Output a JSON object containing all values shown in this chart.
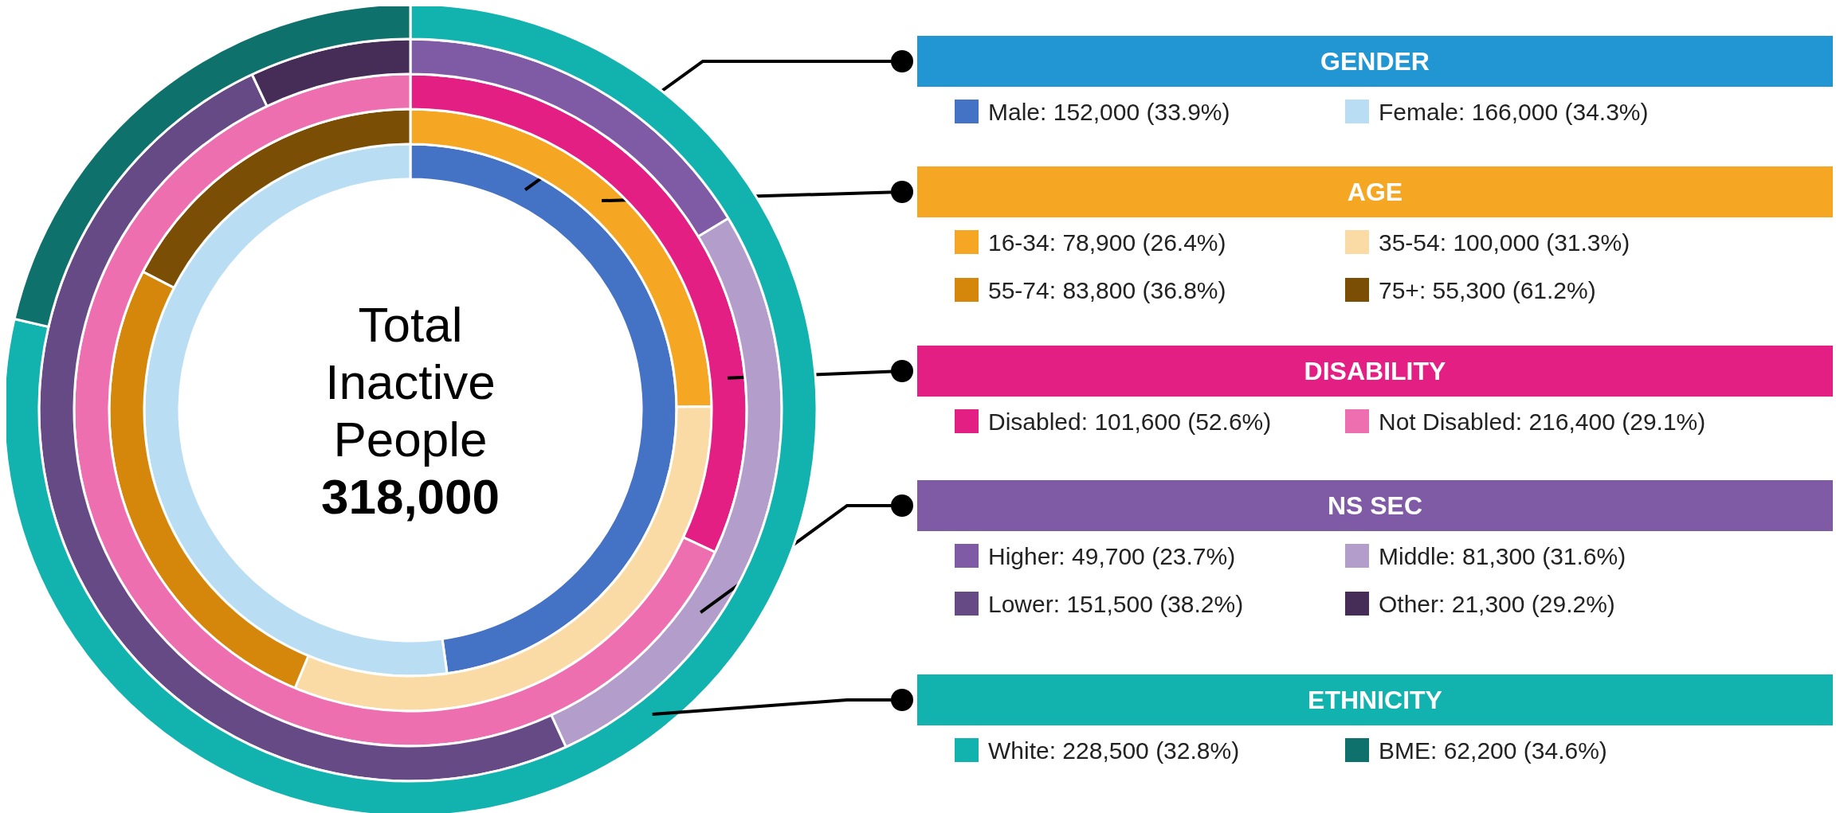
{
  "chart_data": [
    {
      "type": "donut",
      "title": "GENDER",
      "color": "#2196d3",
      "legend": "right",
      "categories": [
        "Male",
        "Female"
      ],
      "values": [
        152000,
        166000
      ],
      "value_labels": [
        "152,000 (33.9%)",
        "166,000 (34.3%)"
      ],
      "colors": [
        "#4472c4",
        "#b9def4"
      ],
      "annotations": [
        "Total Inactive People",
        "318,000"
      ]
    },
    {
      "type": "donut",
      "title": "AGE",
      "color": "#f5a623",
      "legend": "right",
      "categories": [
        "16-34",
        "35-54",
        "55-74",
        "75+"
      ],
      "values": [
        78900,
        100000,
        83800,
        55300
      ],
      "value_labels": [
        "78,900 (26.4%)",
        "100,000 (31.3%)",
        "83,800 (36.8%)",
        "55,300 (61.2%)"
      ],
      "colors": [
        "#f5a623",
        "#fbdba5",
        "#d4870a",
        "#7a4e05"
      ]
    },
    {
      "type": "donut",
      "title": "DISABILITY",
      "color": "#e31f84",
      "legend": "right",
      "categories": [
        "Disabled",
        "Not Disabled"
      ],
      "values": [
        101600,
        216400
      ],
      "value_labels": [
        "101,600 (52.6%)",
        "216,400 (29.1%)"
      ],
      "colors": [
        "#e31f84",
        "#ee6faf"
      ]
    },
    {
      "type": "donut",
      "title": "NS SEC",
      "color": "#7f5ba5",
      "legend": "right",
      "categories": [
        "Higher",
        "Middle",
        "Lower",
        "Other"
      ],
      "values": [
        49700,
        81300,
        151500,
        21300
      ],
      "value_labels": [
        "49,700 (23.7%)",
        "81,300 (31.6%)",
        "151,500 (38.2%)",
        "21,300 (29.2%)"
      ],
      "colors": [
        "#7f5ba5",
        "#b39ecb",
        "#664a85",
        "#452d58"
      ]
    },
    {
      "type": "donut",
      "title": "ETHNICITY",
      "color": "#12b3ae",
      "legend": "right",
      "categories": [
        "White",
        "BME"
      ],
      "values": [
        228500,
        62200
      ],
      "value_labels": [
        "228,500 (32.8%)",
        "62,200 (34.6%)"
      ],
      "colors": [
        "#12b3ae",
        "#0e716c"
      ]
    }
  ]
}
